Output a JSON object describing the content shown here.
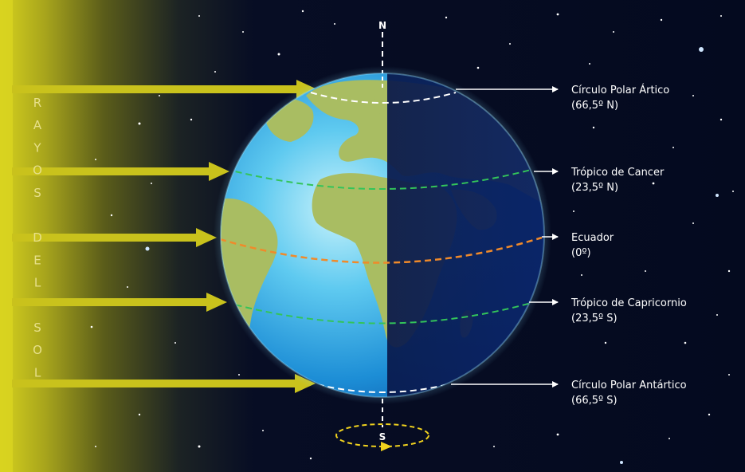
{
  "sun_label": {
    "letters": [
      "R",
      "A",
      "Y",
      "O",
      "S",
      "",
      "D",
      "E",
      "L",
      "",
      "S",
      "O",
      "L"
    ]
  },
  "poles": {
    "north": "N",
    "south": "S"
  },
  "labels": [
    {
      "id": "arctic",
      "name": "Círculo Polar Ártico",
      "value": "(66,5º N)"
    },
    {
      "id": "cancer",
      "name": "Trópico de Cancer",
      "value": "(23,5º N)"
    },
    {
      "id": "equator",
      "name": "Ecuador",
      "value": "(0º)"
    },
    {
      "id": "capricorn",
      "name": "Trópico de Capricornio",
      "value": "(23,5º S)"
    },
    {
      "id": "antarctic",
      "name": "Círculo Polar Antártico",
      "value": "(66,5º S)"
    }
  ],
  "colors": {
    "space": "#050a1e",
    "sun": "#d8d21a",
    "sun_ray": "#c9c21c",
    "ocean_day": "#38b6e6",
    "ocean_night": "#0a1f5e",
    "land_day": "#a9bd62",
    "polar_circle": "#ffffff",
    "tropic": "#33c45a",
    "equator": "#f08a2a",
    "rotation": "#f0d21e"
  }
}
